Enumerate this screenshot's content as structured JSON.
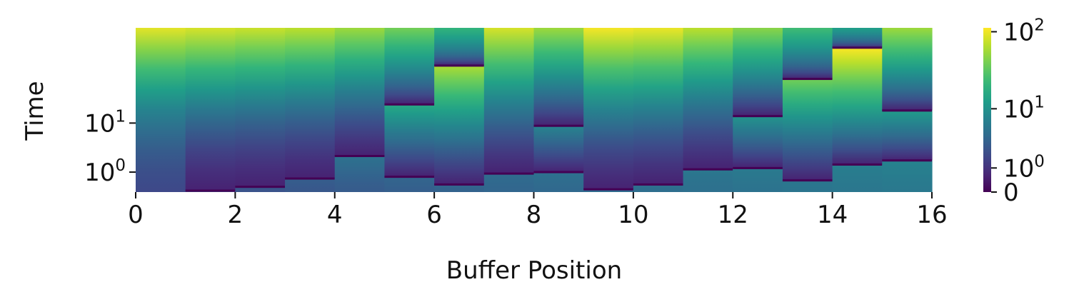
{
  "chart_data": {
    "type": "heatmap",
    "xlabel": "Buffer Position",
    "ylabel": "Time",
    "xlim": [
      0,
      16
    ],
    "x_ticks": [
      "0",
      "2",
      "4",
      "6",
      "8",
      "10",
      "12",
      "14",
      "16"
    ],
    "y_ticks": [
      {
        "value": 1,
        "base": "10",
        "exp": "0"
      },
      {
        "value": 10,
        "base": "10",
        "exp": "1"
      }
    ],
    "colorbar": {
      "colormap": "viridis",
      "scale": "symlog",
      "ticks": [
        {
          "value": 0,
          "label": "0",
          "exp": ""
        },
        {
          "value": 1,
          "label": "10",
          "exp": "0"
        },
        {
          "value": 10,
          "label": "10",
          "exp": "1"
        },
        {
          "value": 100,
          "label": "10",
          "exp": "2"
        }
      ]
    },
    "columns": [
      {
        "position": 0,
        "reset_times": [],
        "top_value": 120
      },
      {
        "position": 1,
        "reset_times": [
          0.05
        ],
        "top_value": 110
      },
      {
        "position": 2,
        "reset_times": [
          0.2
        ],
        "top_value": 100
      },
      {
        "position": 3,
        "reset_times": [
          0.6
        ],
        "top_value": 90
      },
      {
        "position": 4,
        "reset_times": [
          2.5
        ],
        "top_value": 70
      },
      {
        "position": 5,
        "reset_times": [
          0.7,
          20
        ],
        "top_value": 50
      },
      {
        "position": 6,
        "reset_times": [
          0.3,
          80
        ],
        "top_value": 25
      },
      {
        "position": 7,
        "reset_times": [
          0.9
        ],
        "top_value": 110
      },
      {
        "position": 8,
        "reset_times": [
          1.0,
          9
        ],
        "top_value": 70
      },
      {
        "position": 9,
        "reset_times": [
          0.1
        ],
        "top_value": 140
      },
      {
        "position": 10,
        "reset_times": [
          0.3
        ],
        "top_value": 130
      },
      {
        "position": 11,
        "reset_times": [
          1.2
        ],
        "top_value": 90
      },
      {
        "position": 12,
        "reset_times": [
          1.3,
          13
        ],
        "top_value": 60
      },
      {
        "position": 13,
        "reset_times": [
          0.5,
          50
        ],
        "top_value": 30
      },
      {
        "position": 14,
        "reset_times": [
          1.6,
          150
        ],
        "top_value": 15
      },
      {
        "position": 15,
        "reset_times": [
          2.0,
          16
        ],
        "top_value": 70
      }
    ]
  }
}
